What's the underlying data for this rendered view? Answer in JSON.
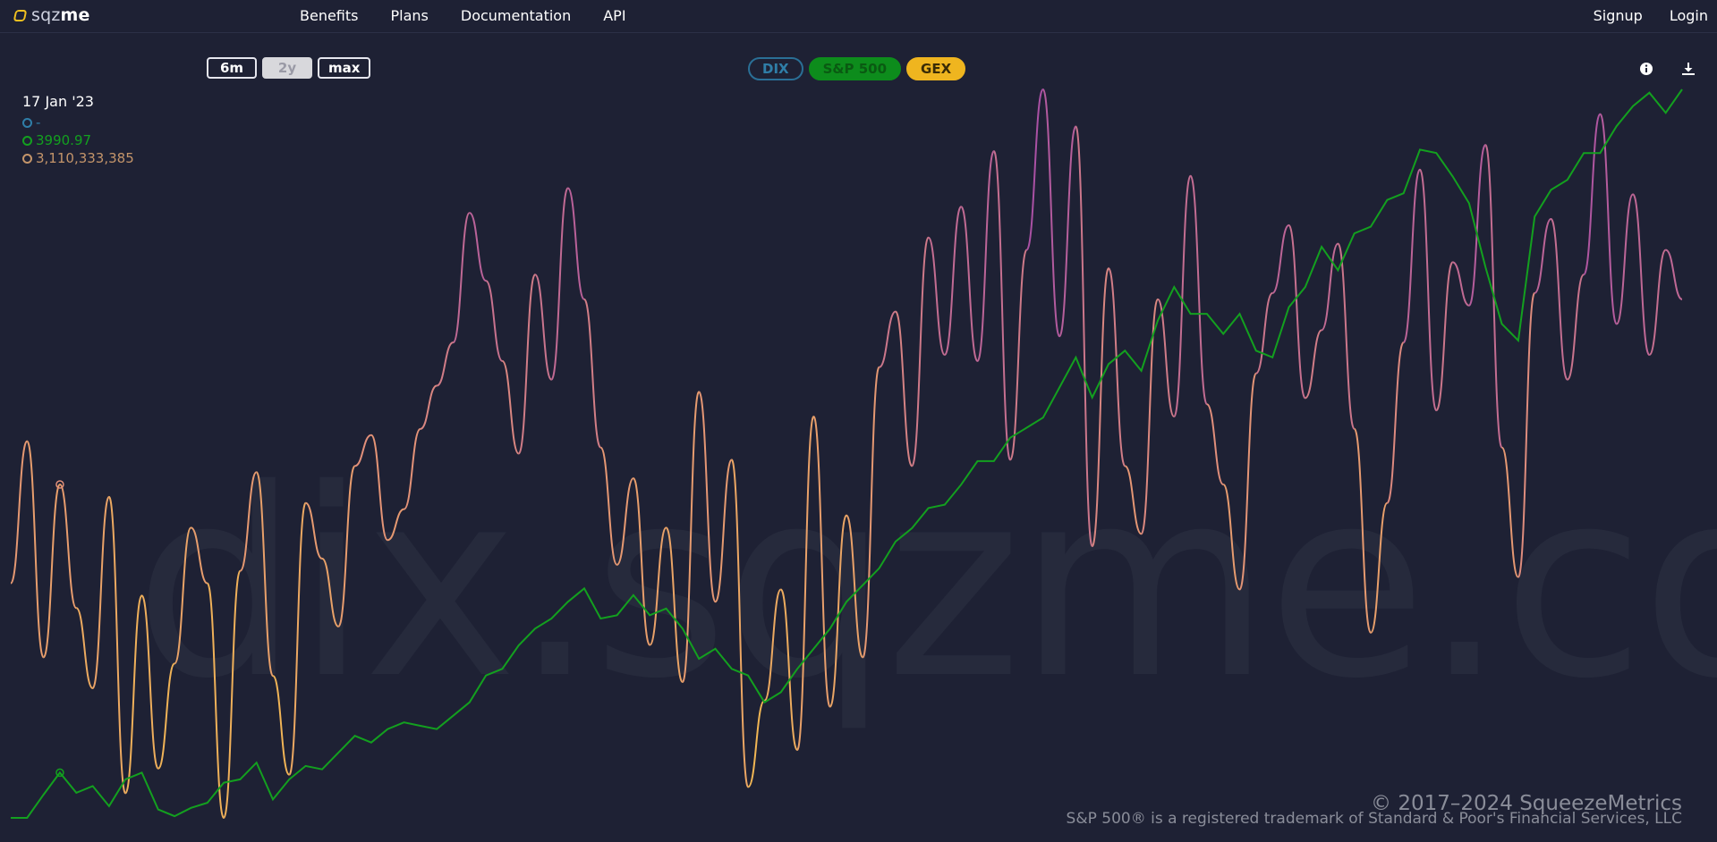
{
  "brand": {
    "prefix": "sqz",
    "suffix": "me"
  },
  "nav": {
    "benefits": "Benefits",
    "plans": "Plans",
    "documentation": "Documentation",
    "api": "API",
    "signup": "Signup",
    "login": "Login"
  },
  "range_buttons": [
    "6m",
    "2y",
    "max"
  ],
  "active_range": "2y",
  "series_buttons": {
    "dix": "DIX",
    "spx": "S&P 500",
    "gex": "GEX"
  },
  "readout": {
    "date": "17 Jan '23",
    "dix": "-",
    "spx": "3990.97",
    "gex": "3,110,333,385"
  },
  "watermark": "dix.sqzme.co",
  "footer": {
    "copyright": "© 2017–2024 SqueezeMetrics",
    "trademark": "S&P 500® is a registered trademark of Standard & Poor's Financial Services, LLC"
  },
  "colors": {
    "background": "#1e2134",
    "spx": "#13a01f",
    "gex_low": "#f5c04a",
    "gex_mid": "#e2907a",
    "gex_high": "#9a3fb0",
    "dix": "#2f7ea8"
  },
  "icons": {
    "info": "info-icon",
    "download": "download-icon"
  },
  "chart_data": {
    "type": "line",
    "x_range": [
      "Nov 2022",
      "Nov 2024"
    ],
    "grid": false,
    "series": [
      {
        "name": "S&P 500",
        "color": "#13a01f",
        "values": [
          3855,
          3855,
          3924,
          3990,
          3930,
          3950,
          3890,
          3970,
          3990,
          3880,
          3860,
          3885,
          3900,
          3960,
          3970,
          4020,
          3910,
          3970,
          4010,
          4000,
          4050,
          4100,
          4080,
          4120,
          4140,
          4130,
          4120,
          4160,
          4200,
          4280,
          4300,
          4370,
          4420,
          4450,
          4500,
          4540,
          4450,
          4460,
          4520,
          4460,
          4480,
          4420,
          4330,
          4360,
          4300,
          4280,
          4200,
          4230,
          4300,
          4360,
          4420,
          4500,
          4550,
          4600,
          4680,
          4720,
          4780,
          4790,
          4850,
          4920,
          4920,
          4990,
          5020,
          5050,
          5140,
          5230,
          5110,
          5210,
          5250,
          5190,
          5340,
          5440,
          5360,
          5360,
          5300,
          5360,
          5250,
          5230,
          5380,
          5440,
          5560,
          5490,
          5600,
          5620,
          5700,
          5720,
          5850,
          5840,
          5770,
          5690,
          5500,
          5330,
          5280,
          5650,
          5730,
          5760,
          5840,
          5840,
          5920,
          5980,
          6020,
          5960,
          6030
        ]
      },
      {
        "name": "GEX",
        "unit": "billions",
        "color_scale": [
          "#f5c04a",
          "#e2907a",
          "#9a3fb0"
        ],
        "values": [
          2.2,
          4.5,
          1.0,
          3.8,
          1.8,
          0.5,
          3.6,
          -1.2,
          2.0,
          -0.8,
          0.9,
          3.1,
          2.2,
          -1.6,
          2.4,
          4.0,
          0.7,
          -0.9,
          3.5,
          2.6,
          1.5,
          4.1,
          4.6,
          2.9,
          3.4,
          4.7,
          5.4,
          6.1,
          8.2,
          7.1,
          5.8,
          4.3,
          7.2,
          5.5,
          8.6,
          6.8,
          4.4,
          2.5,
          3.9,
          1.2,
          3.1,
          0.6,
          5.3,
          1.9,
          4.2,
          -1.1,
          0.3,
          2.1,
          -0.5,
          4.9,
          0.2,
          3.3,
          1.0,
          5.7,
          6.6,
          4.1,
          7.8,
          5.9,
          8.3,
          5.8,
          9.2,
          4.2,
          7.6,
          10.2,
          6.2,
          9.6,
          2.8,
          7.3,
          4.1,
          3.0,
          6.8,
          4.9,
          8.8,
          5.1,
          3.8,
          2.1,
          5.6,
          6.9,
          8.0,
          5.2,
          6.3,
          7.7,
          4.7,
          1.4,
          3.5,
          6.1,
          8.9,
          5.0,
          7.4,
          6.7,
          9.3,
          4.4,
          2.3,
          6.9,
          8.1,
          5.5,
          7.2,
          9.8,
          6.4,
          8.5,
          5.9,
          7.6,
          6.8
        ]
      }
    ]
  }
}
